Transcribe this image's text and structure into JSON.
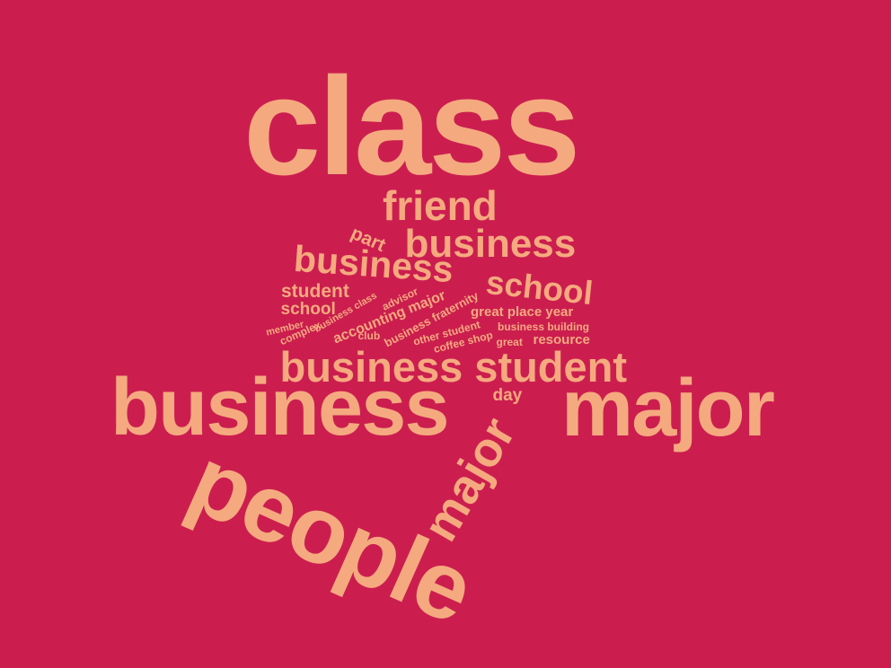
{
  "colors": {
    "background": "#cb1e4f",
    "text": "#f5a97f"
  },
  "words": [
    {
      "id": "class",
      "text": "class"
    },
    {
      "id": "friend",
      "text": "friend"
    },
    {
      "id": "part",
      "text": "part"
    },
    {
      "id": "business-1",
      "text": "business"
    },
    {
      "id": "business-2",
      "text": "business"
    },
    {
      "id": "school-1",
      "text": "school"
    },
    {
      "id": "student",
      "text": "student"
    },
    {
      "id": "school-2",
      "text": "school"
    },
    {
      "id": "advisor",
      "text": "advisor"
    },
    {
      "id": "accounting-major",
      "text": "accounting major"
    },
    {
      "id": "business-class",
      "text": "business class"
    },
    {
      "id": "member",
      "text": "member"
    },
    {
      "id": "complex",
      "text": "complex"
    },
    {
      "id": "club",
      "text": "club"
    },
    {
      "id": "business-fraternity",
      "text": "business fraternity"
    },
    {
      "id": "great-place-year",
      "text": "great place year"
    },
    {
      "id": "other-student",
      "text": "other student"
    },
    {
      "id": "business-building",
      "text": "business building"
    },
    {
      "id": "coffee-shop",
      "text": "coffee shop"
    },
    {
      "id": "great",
      "text": "great"
    },
    {
      "id": "resource",
      "text": "resource"
    },
    {
      "id": "business-student",
      "text": "business student"
    },
    {
      "id": "day",
      "text": "day"
    },
    {
      "id": "business-3",
      "text": "business"
    },
    {
      "id": "major-1",
      "text": "major"
    },
    {
      "id": "major-2",
      "text": "major"
    },
    {
      "id": "people",
      "text": "people"
    }
  ]
}
